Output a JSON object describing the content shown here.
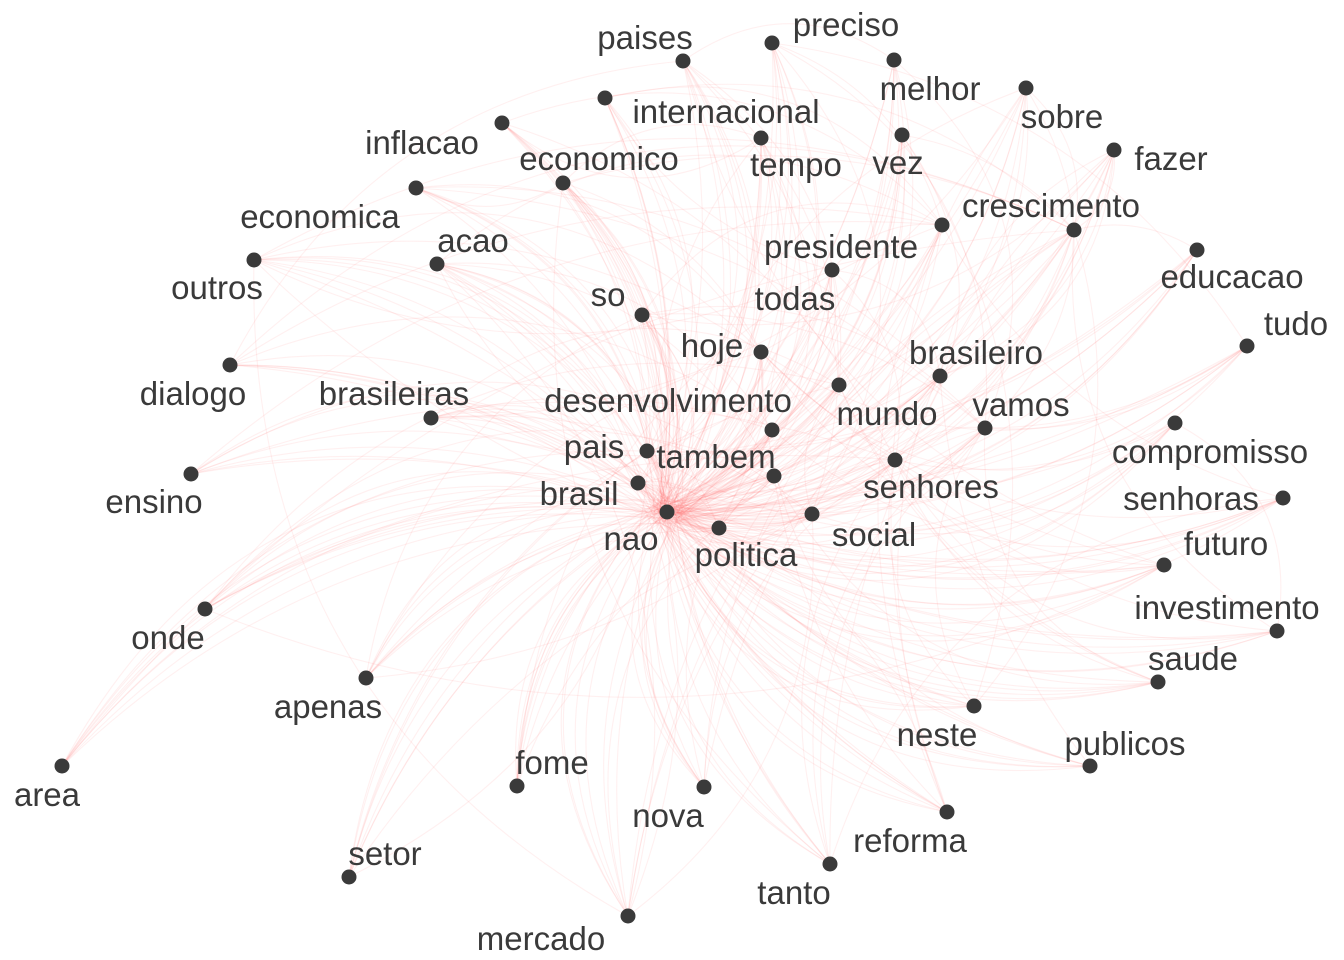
{
  "graph": {
    "style": {
      "node_color": "#3a3a3a",
      "edge_color": "#ff6b6b",
      "background": "#ffffff"
    },
    "nodes": [
      {
        "id": "nao",
        "label": "nao"
      },
      {
        "id": "brasil",
        "label": "brasil"
      },
      {
        "id": "pais",
        "label": "pais"
      },
      {
        "id": "tambem",
        "label": "tambem"
      },
      {
        "id": "politica",
        "label": "politica"
      },
      {
        "id": "social",
        "label": "social"
      },
      {
        "id": "desenvolvimento",
        "label": "desenvolvimento"
      },
      {
        "id": "senhores",
        "label": "senhores"
      },
      {
        "id": "mundo",
        "label": "mundo"
      },
      {
        "id": "brasileiro",
        "label": "brasileiro"
      },
      {
        "id": "vamos",
        "label": "vamos"
      },
      {
        "id": "hoje",
        "label": "hoje"
      },
      {
        "id": "so",
        "label": "so"
      },
      {
        "id": "todas",
        "label": "todas"
      },
      {
        "id": "presidente",
        "label": "presidente"
      },
      {
        "id": "crescimento",
        "label": "crescimento"
      },
      {
        "id": "brasileiras",
        "label": "brasileiras"
      },
      {
        "id": "acao",
        "label": "acao"
      },
      {
        "id": "economico",
        "label": "economico"
      },
      {
        "id": "tempo",
        "label": "tempo"
      },
      {
        "id": "vez",
        "label": "vez"
      },
      {
        "id": "internacional",
        "label": "internacional"
      },
      {
        "id": "inflacao",
        "label": "inflacao"
      },
      {
        "id": "economica",
        "label": "economica"
      },
      {
        "id": "outros",
        "label": "outros"
      },
      {
        "id": "dialogo",
        "label": "dialogo"
      },
      {
        "id": "ensino",
        "label": "ensino"
      },
      {
        "id": "onde",
        "label": "onde"
      },
      {
        "id": "apenas",
        "label": "apenas"
      },
      {
        "id": "area",
        "label": "area"
      },
      {
        "id": "setor",
        "label": "setor"
      },
      {
        "id": "fome",
        "label": "fome"
      },
      {
        "id": "nova",
        "label": "nova"
      },
      {
        "id": "mercado",
        "label": "mercado"
      },
      {
        "id": "tanto",
        "label": "tanto"
      },
      {
        "id": "reforma",
        "label": "reforma"
      },
      {
        "id": "neste",
        "label": "neste"
      },
      {
        "id": "publicos",
        "label": "publicos"
      },
      {
        "id": "saude",
        "label": "saude"
      },
      {
        "id": "investimento",
        "label": "investimento"
      },
      {
        "id": "futuro",
        "label": "futuro"
      },
      {
        "id": "senhoras",
        "label": "senhoras"
      },
      {
        "id": "compromisso",
        "label": "compromisso"
      },
      {
        "id": "tudo",
        "label": "tudo"
      },
      {
        "id": "educacao",
        "label": "educacao"
      },
      {
        "id": "fazer",
        "label": "fazer"
      },
      {
        "id": "sobre",
        "label": "sobre"
      },
      {
        "id": "melhor",
        "label": "melhor"
      },
      {
        "id": "preciso",
        "label": "preciso"
      },
      {
        "id": "paises",
        "label": "paises"
      }
    ]
  }
}
